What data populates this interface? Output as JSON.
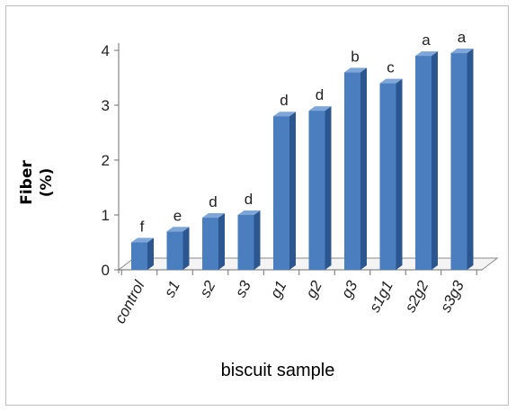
{
  "chart_data": {
    "type": "bar",
    "title": "",
    "xlabel": "biscuit sample",
    "ylabel_lines": [
      "Fiber",
      "(%)"
    ],
    "ylim": [
      0,
      4
    ],
    "yticks": [
      "0",
      "1",
      "2",
      "3",
      "4"
    ],
    "categories": [
      "control",
      "s1",
      "s2",
      "s3",
      "g1",
      "g2",
      "g3",
      "s1g1",
      "s2g2",
      "s3g3"
    ],
    "values": [
      0.5,
      0.7,
      0.95,
      1.0,
      2.8,
      2.9,
      3.6,
      3.4,
      3.9,
      3.95
    ],
    "significance_letters": [
      "f",
      "e",
      "d",
      "d",
      "d",
      "d",
      "b",
      "c",
      "a",
      "a"
    ],
    "colors": {
      "bar_front": "#4a7ebf",
      "bar_side": "#2c5690",
      "bar_top": "#7ea6d8"
    },
    "grid": false,
    "legend": "none",
    "style": "3d-column"
  }
}
